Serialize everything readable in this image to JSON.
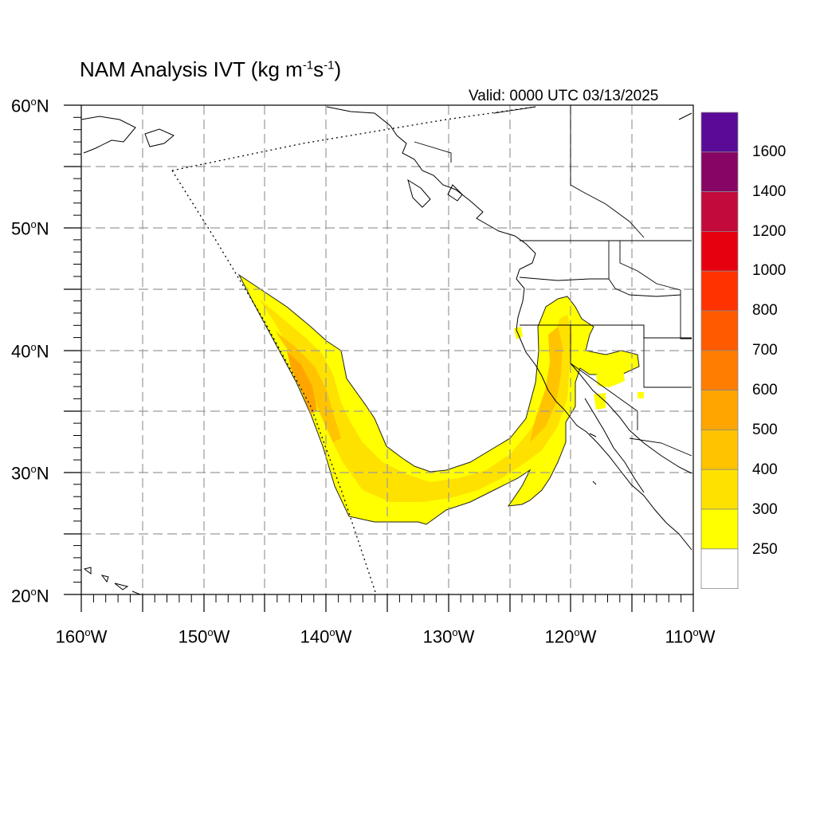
{
  "header": {
    "title_prefix": "NAM Analysis IVT (kg m",
    "title_exp1": "-1",
    "title_mid": "s",
    "title_exp2": "-1",
    "title_suffix": ")",
    "valid_text": "Valid: 0000 UTC 03/13/2025"
  },
  "axes": {
    "lat_labels": [
      {
        "value": "60",
        "hemi": "N"
      },
      {
        "value": "50",
        "hemi": "N"
      },
      {
        "value": "40",
        "hemi": "N"
      },
      {
        "value": "30",
        "hemi": "N"
      },
      {
        "value": "20",
        "hemi": "N"
      }
    ],
    "lon_labels": [
      {
        "value": "160",
        "hemi": "W"
      },
      {
        "value": "150",
        "hemi": "W"
      },
      {
        "value": "140",
        "hemi": "W"
      },
      {
        "value": "130",
        "hemi": "W"
      },
      {
        "value": "120",
        "hemi": "W"
      },
      {
        "value": "110",
        "hemi": "W"
      }
    ],
    "degree_symbol": "o"
  },
  "colorbar": {
    "labels": [
      "1600",
      "1400",
      "1200",
      "1000",
      "800",
      "700",
      "600",
      "500",
      "400",
      "300",
      "250"
    ],
    "colors": [
      "#5a0a96",
      "#870564",
      "#c30a3c",
      "#e6000f",
      "#ff3200",
      "#ff5a00",
      "#ff7d00",
      "#ffa500",
      "#ffc300",
      "#ffe100",
      "#ffff00",
      "#ffffff"
    ]
  },
  "field_colors": {
    "c250": "#ffff00",
    "c300": "#ffe100",
    "c400": "#ffc300",
    "c500": "#ffa500"
  }
}
